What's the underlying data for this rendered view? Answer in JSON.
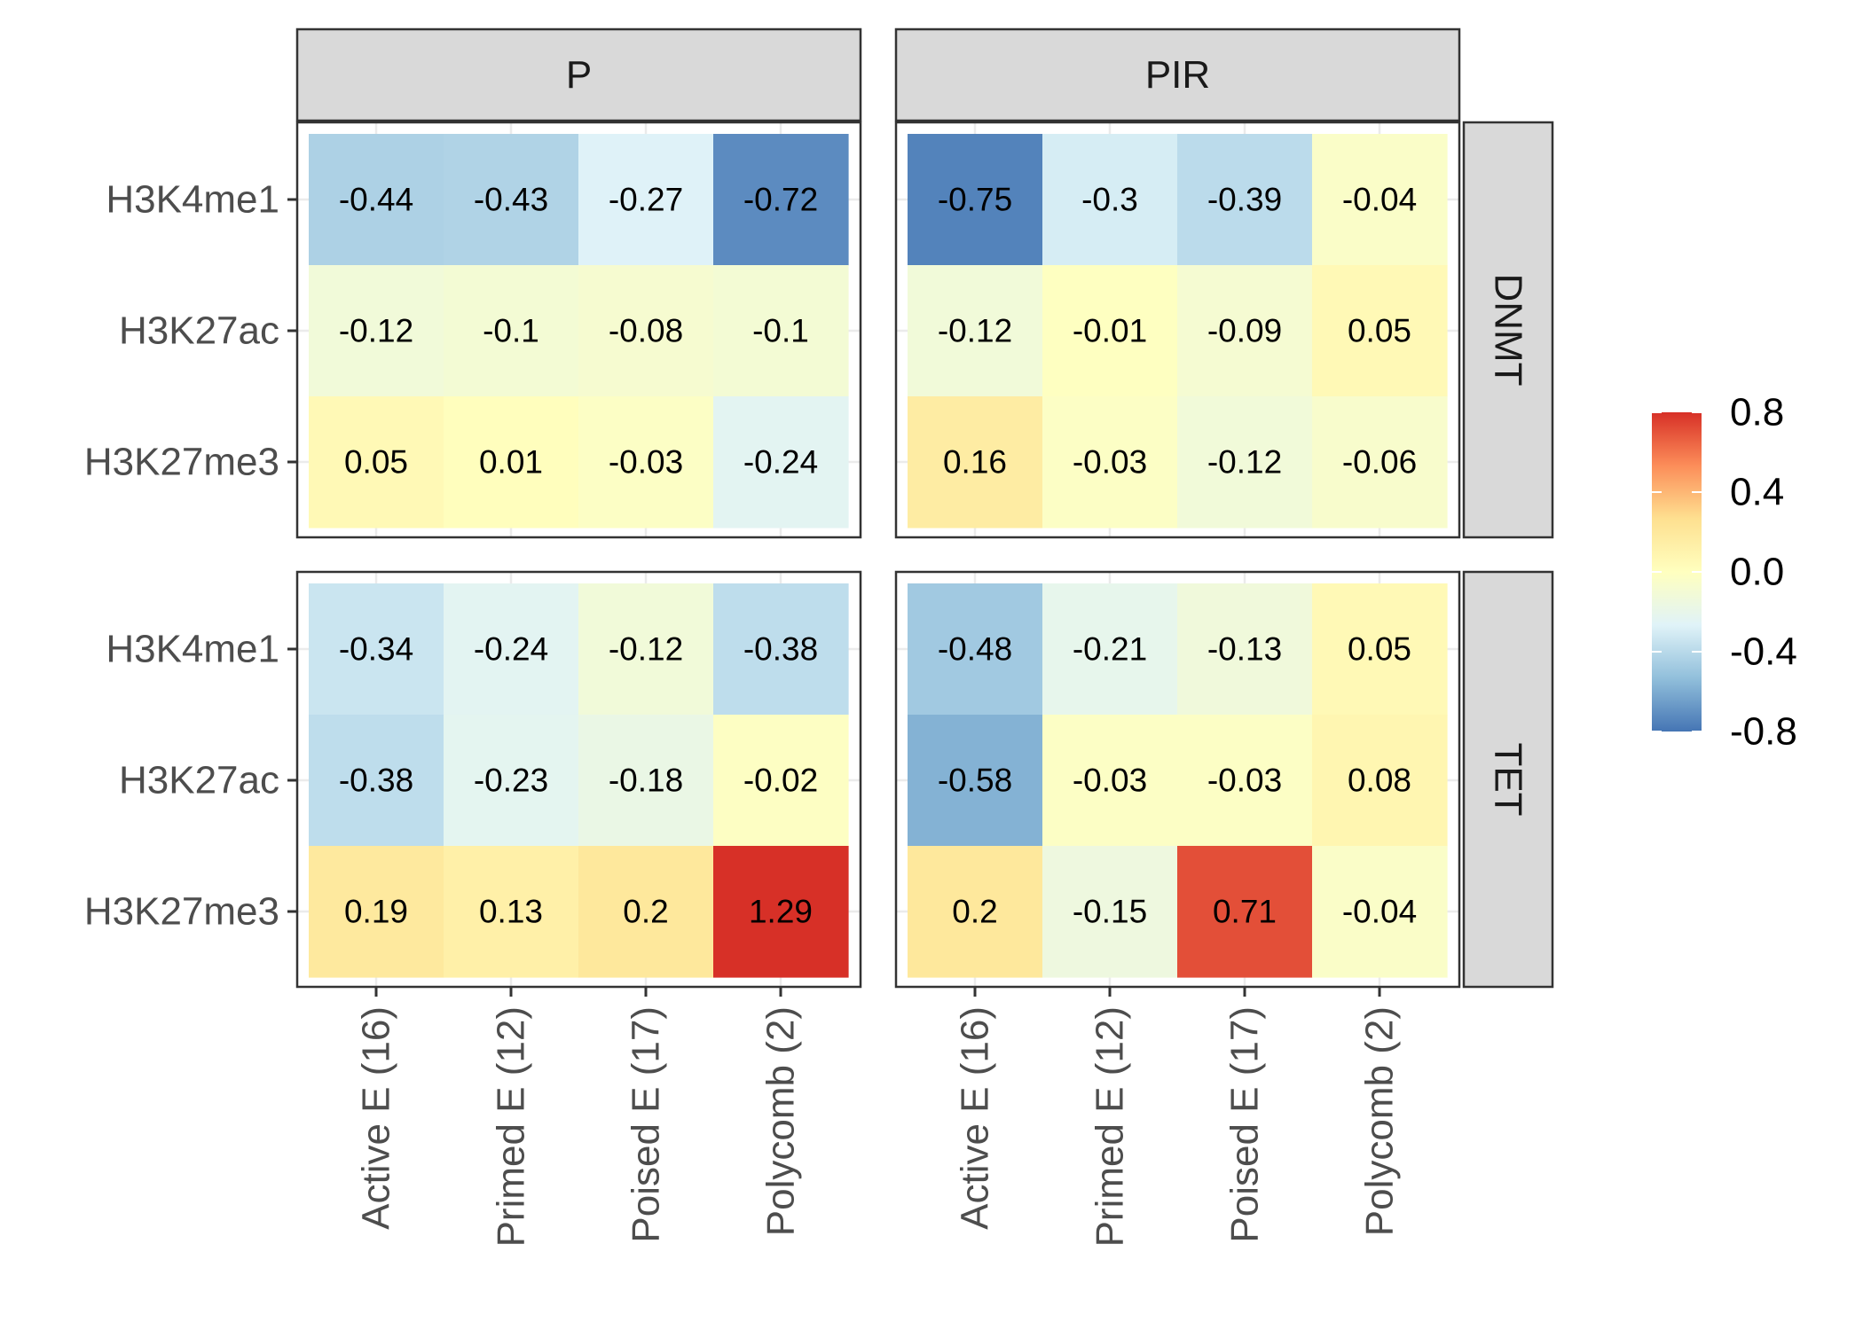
{
  "chart_data": {
    "type": "heatmap",
    "facet_columns": [
      "P",
      "PIR"
    ],
    "facet_rows": [
      "DNMT",
      "TET"
    ],
    "x_categories": [
      "Active E (16)",
      "Primed E (12)",
      "Poised E (17)",
      "Polycomb (2)"
    ],
    "y_categories": [
      "H3K4me1",
      "H3K27ac",
      "H3K27me3"
    ],
    "panels": [
      {
        "column": "P",
        "row": "DNMT",
        "values": [
          [
            -0.44,
            -0.43,
            -0.27,
            -0.72
          ],
          [
            -0.12,
            -0.1,
            -0.08,
            -0.1
          ],
          [
            0.05,
            0.01,
            -0.03,
            -0.24
          ]
        ]
      },
      {
        "column": "PIR",
        "row": "DNMT",
        "values": [
          [
            -0.75,
            -0.3,
            -0.39,
            -0.04
          ],
          [
            -0.12,
            -0.01,
            -0.09,
            0.05
          ],
          [
            0.16,
            -0.03,
            -0.12,
            -0.06
          ]
        ]
      },
      {
        "column": "P",
        "row": "TET",
        "values": [
          [
            -0.34,
            -0.24,
            -0.12,
            -0.38
          ],
          [
            -0.38,
            -0.23,
            -0.18,
            -0.02
          ],
          [
            0.19,
            0.13,
            0.2,
            1.29
          ]
        ]
      },
      {
        "column": "PIR",
        "row": "TET",
        "values": [
          [
            -0.48,
            -0.21,
            -0.13,
            0.05
          ],
          [
            -0.58,
            -0.03,
            -0.03,
            0.08
          ],
          [
            0.2,
            -0.15,
            0.71,
            -0.04
          ]
        ]
      }
    ],
    "legend": {
      "position": "right",
      "ticks": [
        "0.8",
        "0.4",
        "0.0",
        "-0.4",
        "-0.8"
      ],
      "tick_values": [
        0.8,
        0.4,
        0.0,
        -0.4,
        -0.8
      ],
      "range": [
        -0.8,
        0.8
      ],
      "palette": [
        "#4575b4",
        "#91bfdb",
        "#e0f3f8",
        "#ffffbf",
        "#fee090",
        "#fc8d59",
        "#d73027"
      ]
    },
    "grid": true,
    "theme": "bw"
  }
}
